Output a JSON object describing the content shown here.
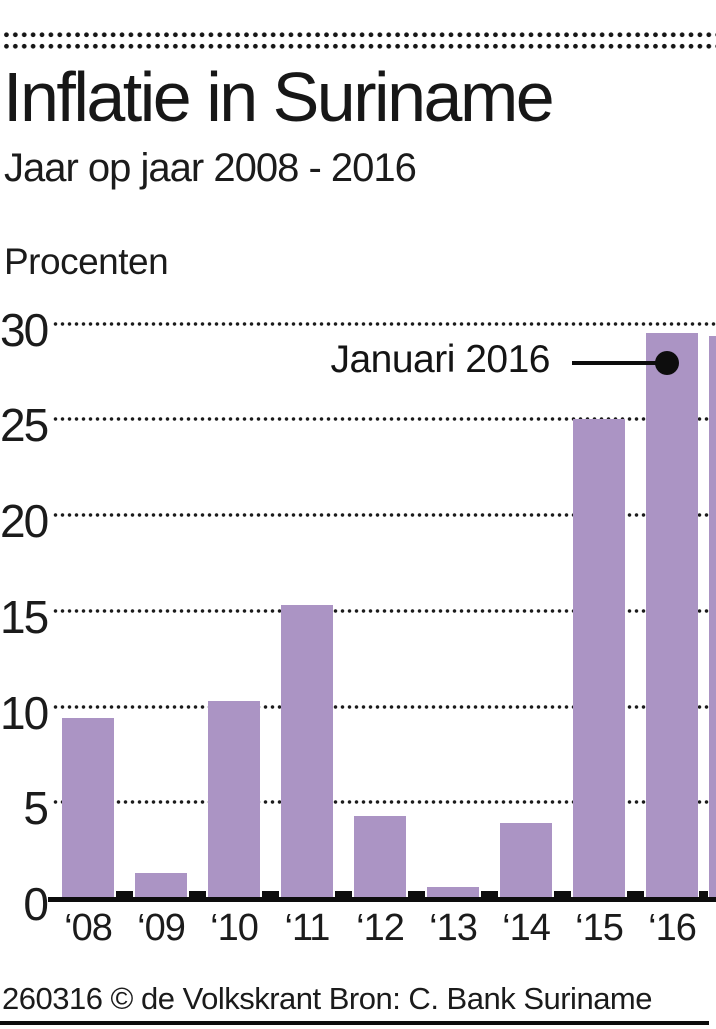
{
  "header": {
    "title": "Inflatie in Suriname",
    "subtitle": "Jaar op jaar 2008 - 2016"
  },
  "chart_data": {
    "type": "bar",
    "title": "Inflatie in Suriname",
    "subtitle": "Jaar op jaar 2008 - 2016",
    "ylabel": "Procenten",
    "xlabel": "",
    "categories": [
      "‘08",
      "‘09",
      "‘10",
      "‘11",
      "‘12",
      "‘13",
      "‘14",
      "‘15",
      "‘16"
    ],
    "values": [
      9.4,
      1.3,
      10.3,
      15.3,
      4.3,
      0.6,
      3.9,
      25.0,
      29.5
    ],
    "ylim": [
      0,
      30
    ],
    "yticks": [
      0,
      5,
      10,
      15,
      20,
      25,
      30
    ],
    "grid": "dotted-horizontal",
    "legend": "none",
    "bar_color": "#ab94c4",
    "annotation": {
      "label": "Januari 2016",
      "target_category": "‘16",
      "value": 29.5
    },
    "partial_bar_at_right_edge": true
  },
  "footer": {
    "credit": "260316 © de Volkskrant Bron: C. Bank Suriname"
  }
}
